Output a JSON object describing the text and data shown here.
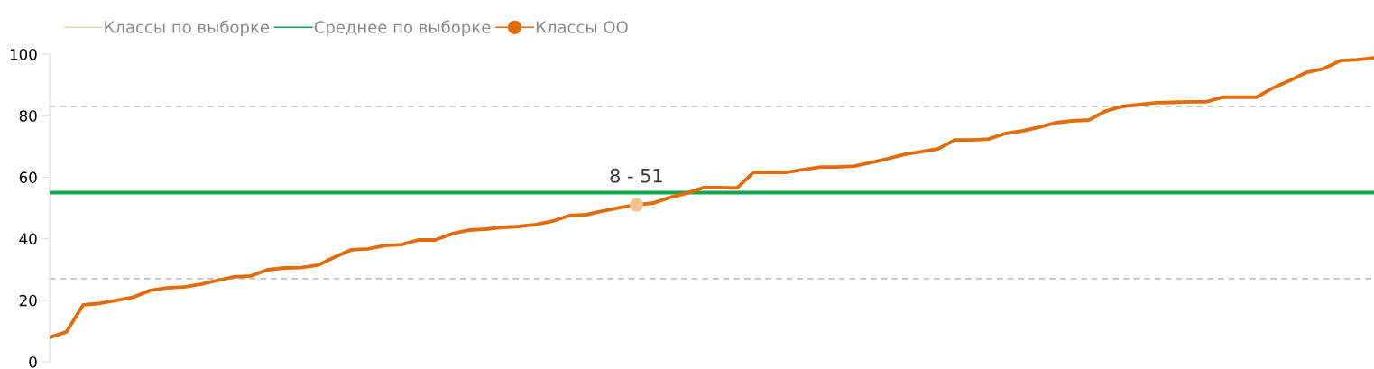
{
  "chart_data": {
    "type": "line",
    "categories": [
      null,
      null,
      null,
      null,
      null,
      null,
      null,
      null,
      null,
      null,
      null,
      null,
      null,
      null,
      null,
      null,
      null,
      null,
      null,
      null,
      null,
      null,
      null,
      null,
      null,
      null,
      null,
      null,
      null,
      null,
      null,
      null,
      null,
      null,
      null,
      null,
      null,
      null,
      null,
      null,
      null,
      null,
      null,
      null,
      null,
      null,
      null,
      null,
      null,
      null,
      null,
      null,
      null,
      null,
      null,
      null,
      null,
      null,
      null,
      null,
      null,
      null,
      null,
      null,
      null,
      null,
      null,
      null,
      null,
      null,
      null,
      null,
      null,
      null,
      null,
      null,
      null,
      null,
      null,
      null
    ],
    "series": [
      {
        "name": "Классы по выборке",
        "color": "#e8d9b5",
        "values": [
          null,
          null,
          null,
          null,
          null,
          null,
          null,
          null,
          null,
          null,
          null,
          null,
          null,
          null,
          null,
          null,
          null,
          null,
          null,
          null,
          null,
          null,
          null,
          null,
          null,
          null,
          null,
          null,
          null,
          null,
          null,
          null,
          null,
          null,
          null,
          null,
          null,
          null,
          null,
          null,
          null,
          null,
          null,
          null,
          null,
          null,
          null,
          null,
          null,
          null,
          null,
          null,
          null,
          null,
          null,
          null,
          null,
          null,
          null,
          null,
          null,
          null,
          null,
          null,
          null,
          null,
          null,
          null,
          null,
          null,
          null,
          null,
          null,
          null,
          null,
          null,
          null,
          null,
          null,
          null
        ]
      },
      {
        "name": "Среднее по выборке",
        "color": "#12a650",
        "values": [
          55,
          55,
          55,
          55,
          55,
          55,
          55,
          55,
          55,
          55,
          55,
          55,
          55,
          55,
          55,
          55,
          55,
          55,
          55,
          55,
          55,
          55,
          55,
          55,
          55,
          55,
          55,
          55,
          55,
          55,
          55,
          55,
          55,
          55,
          55,
          55,
          55,
          55,
          55,
          55,
          55,
          55,
          55,
          55,
          55,
          55,
          55,
          55,
          55,
          55,
          55,
          55,
          55,
          55,
          55,
          55,
          55,
          55,
          55,
          55,
          55,
          55,
          55,
          55,
          55,
          55,
          55,
          55,
          55,
          55,
          55,
          55,
          55,
          55,
          55,
          55,
          55,
          55,
          55,
          55
        ]
      },
      {
        "name": "Классы ОО",
        "color": "#e36c0a",
        "values": [
          7.9,
          9.7,
          18.5,
          19,
          20,
          21,
          23.2,
          24,
          24.3,
          25.2,
          26.4,
          27.6,
          27.9,
          29.9,
          30.5,
          30.6,
          31.4,
          34,
          36.4,
          36.7,
          37.8,
          38.1,
          39.6,
          39.6,
          41.6,
          42.8,
          43.1,
          43.7,
          44,
          44.6,
          45.7,
          47.5,
          47.8,
          49,
          50.1,
          51,
          51.6,
          53.4,
          54.8,
          56.6,
          56.6,
          56.5,
          61.6,
          61.6,
          61.6,
          62.5,
          63.3,
          63.3,
          63.6,
          64.8,
          66,
          67.4,
          68.3,
          69.2,
          72.1,
          72.1,
          72.4,
          74.2,
          75,
          76.2,
          77.7,
          78.3,
          78.6,
          81.5,
          83,
          83.6,
          84.2,
          84.3,
          84.5,
          84.5,
          86,
          86,
          86,
          89.1,
          91.5,
          94.1,
          95.3,
          97.9,
          98.2,
          98.8
        ]
      }
    ],
    "ref_lines": [
      {
        "axis": "y",
        "value": 83,
        "color": "#c0c0c0",
        "line_style": "dashed"
      },
      {
        "axis": "y",
        "value": 27,
        "color": "#c0c0c0",
        "line_style": "dashed"
      }
    ],
    "annotations": [
      {
        "text": "8 - 51",
        "y": 51
      }
    ],
    "ylim": [
      0,
      100
    ],
    "yticks": [
      0,
      20,
      40,
      60,
      80,
      100
    ],
    "grid": false,
    "legend": "top left",
    "marker": "none",
    "line_style": "solid"
  }
}
